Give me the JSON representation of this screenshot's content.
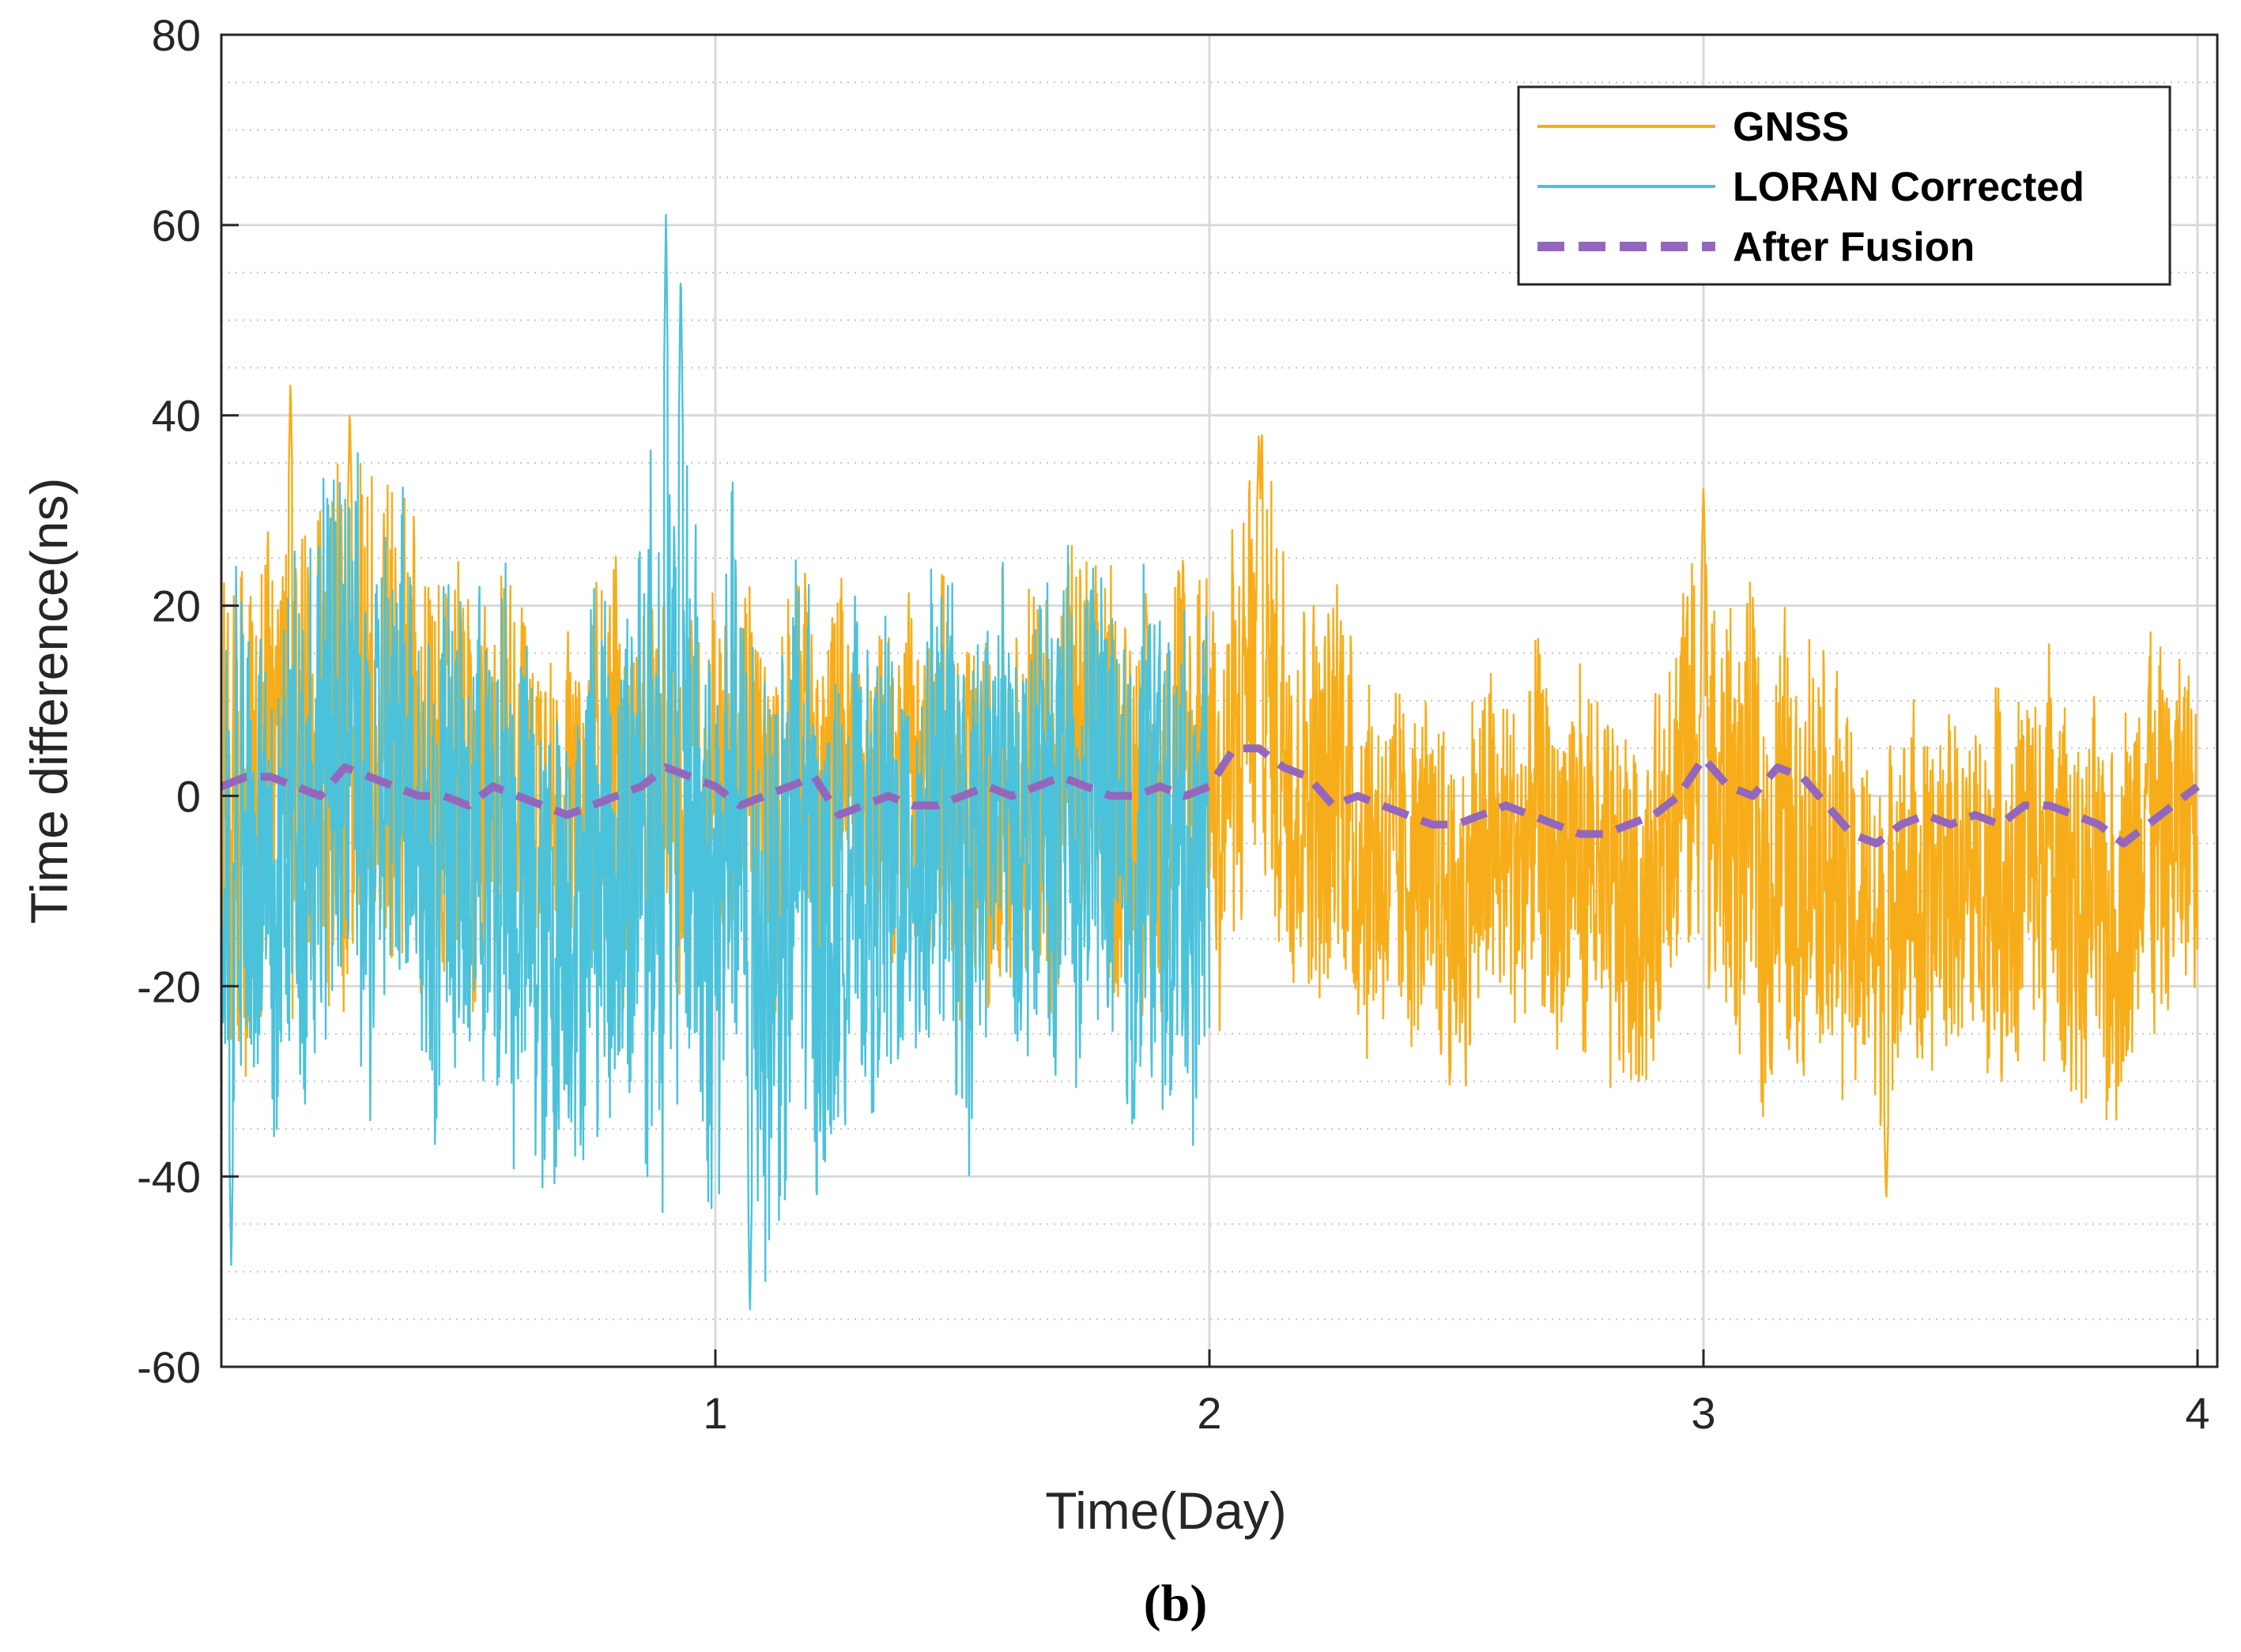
{
  "chart_data": {
    "type": "line",
    "title": "",
    "caption": "(b)",
    "xlabel": "Time(Day)",
    "ylabel": "Time difference(ns)",
    "xlim": [
      0,
      4.04
    ],
    "ylim": [
      -60,
      80
    ],
    "xticks": [
      1,
      2,
      3,
      4
    ],
    "yticks": [
      -60,
      -40,
      -20,
      0,
      20,
      40,
      60,
      80
    ],
    "grid": true,
    "minor_grid": true,
    "legend_position": "top-right",
    "colors": {
      "GNSS": "#F7AD19",
      "LORAN Corrected": "#4BC2DB",
      "After Fusion": "#9467BD"
    },
    "series": [
      {
        "name": "GNSS",
        "style": "solid",
        "note": "dense noisy signal; envelope points give [x (day), band center (ns), band half-width (ns)]",
        "x_range": [
          0,
          4.0
        ],
        "envelope": [
          [
            0.0,
            0,
            30
          ],
          [
            0.1,
            6,
            26
          ],
          [
            0.2,
            4,
            30
          ],
          [
            0.3,
            6,
            32
          ],
          [
            0.4,
            2,
            26
          ],
          [
            0.5,
            0,
            24
          ],
          [
            0.6,
            2,
            20
          ],
          [
            0.7,
            0,
            18
          ],
          [
            0.8,
            2,
            22
          ],
          [
            0.9,
            6,
            20
          ],
          [
            1.0,
            2,
            22
          ],
          [
            1.1,
            0,
            22
          ],
          [
            1.2,
            2,
            20
          ],
          [
            1.3,
            2,
            16
          ],
          [
            1.4,
            2,
            20
          ],
          [
            1.5,
            0,
            22
          ],
          [
            1.6,
            0,
            22
          ],
          [
            1.7,
            0,
            24
          ],
          [
            1.8,
            2,
            24
          ],
          [
            1.9,
            0,
            22
          ],
          [
            2.0,
            2,
            20
          ],
          [
            2.1,
            10,
            26
          ],
          [
            2.2,
            6,
            24
          ],
          [
            2.3,
            0,
            22
          ],
          [
            2.4,
            -6,
            20
          ],
          [
            2.5,
            -8,
            20
          ],
          [
            2.6,
            -6,
            20
          ],
          [
            2.7,
            -10,
            20
          ],
          [
            2.8,
            -12,
            22
          ],
          [
            2.9,
            -8,
            20
          ],
          [
            3.0,
            0,
            26
          ],
          [
            3.1,
            -6,
            24
          ],
          [
            3.2,
            -4,
            26
          ],
          [
            3.3,
            -12,
            22
          ],
          [
            3.4,
            -14,
            22
          ],
          [
            3.5,
            -10,
            20
          ],
          [
            3.6,
            -8,
            22
          ],
          [
            3.7,
            -8,
            22
          ],
          [
            3.8,
            -12,
            22
          ],
          [
            3.9,
            -8,
            22
          ],
          [
            4.0,
            -4,
            18
          ]
        ],
        "peaks": [
          [
            0.14,
            44
          ],
          [
            0.26,
            41
          ],
          [
            2.1,
            38
          ],
          [
            3.0,
            33
          ],
          [
            3.37,
            -43
          ]
        ]
      },
      {
        "name": "LORAN Corrected",
        "style": "solid",
        "note": "dense noisy signal, present for days 0–2; envelope points give [x (day), band center (ns), band half-width (ns)]",
        "x_range": [
          0,
          2.0
        ],
        "envelope": [
          [
            0.0,
            -4,
            34
          ],
          [
            0.1,
            -2,
            30
          ],
          [
            0.2,
            0,
            32
          ],
          [
            0.3,
            2,
            32
          ],
          [
            0.4,
            -2,
            28
          ],
          [
            0.5,
            -6,
            28
          ],
          [
            0.6,
            -10,
            30
          ],
          [
            0.7,
            -12,
            28
          ],
          [
            0.8,
            -6,
            30
          ],
          [
            0.9,
            0,
            44
          ],
          [
            1.0,
            -6,
            34
          ],
          [
            1.1,
            -10,
            36
          ],
          [
            1.2,
            -8,
            30
          ],
          [
            1.3,
            -10,
            26
          ],
          [
            1.4,
            -6,
            28
          ],
          [
            1.5,
            -4,
            28
          ],
          [
            1.6,
            -2,
            24
          ],
          [
            1.7,
            -2,
            26
          ],
          [
            1.8,
            0,
            28
          ],
          [
            1.9,
            -6,
            30
          ],
          [
            2.0,
            -10,
            28
          ]
        ],
        "peaks": [
          [
            0.9,
            62
          ],
          [
            0.93,
            56
          ],
          [
            1.07,
            -55
          ],
          [
            0.02,
            -50
          ]
        ]
      },
      {
        "name": "After Fusion",
        "style": "dashed",
        "x": [
          0.0,
          0.05,
          0.1,
          0.15,
          0.2,
          0.25,
          0.3,
          0.35,
          0.4,
          0.45,
          0.5,
          0.55,
          0.6,
          0.65,
          0.7,
          0.75,
          0.8,
          0.85,
          0.9,
          0.95,
          1.0,
          1.05,
          1.1,
          1.15,
          1.2,
          1.25,
          1.3,
          1.35,
          1.4,
          1.45,
          1.5,
          1.55,
          1.6,
          1.65,
          1.7,
          1.75,
          1.8,
          1.85,
          1.9,
          1.95,
          2.0,
          2.05,
          2.1,
          2.15,
          2.2,
          2.25,
          2.3,
          2.35,
          2.4,
          2.45,
          2.5,
          2.55,
          2.6,
          2.65,
          2.7,
          2.75,
          2.8,
          2.85,
          2.9,
          2.95,
          3.0,
          3.05,
          3.1,
          3.15,
          3.2,
          3.25,
          3.3,
          3.35,
          3.4,
          3.45,
          3.5,
          3.55,
          3.6,
          3.65,
          3.7,
          3.75,
          3.8,
          3.85,
          3.9,
          3.95,
          4.0
        ],
        "y": [
          1,
          2,
          2,
          1,
          0,
          3,
          2,
          1,
          0,
          0,
          -1,
          1,
          0,
          -1,
          -2,
          -1,
          0,
          1,
          3,
          2,
          1,
          -1,
          0,
          1,
          2,
          -2,
          -1,
          0,
          -1,
          -1,
          0,
          1,
          0,
          1,
          2,
          1,
          0,
          0,
          1,
          0,
          1,
          5,
          5,
          3,
          2,
          -1,
          0,
          -1,
          -2,
          -3,
          -3,
          -2,
          -1,
          -2,
          -3,
          -4,
          -4,
          -3,
          -2,
          0,
          4,
          1,
          0,
          3,
          2,
          -1,
          -4,
          -5,
          -3,
          -2,
          -3,
          -2,
          -3,
          -1,
          -1,
          -2,
          -3,
          -5,
          -3,
          -1,
          1
        ]
      }
    ]
  }
}
